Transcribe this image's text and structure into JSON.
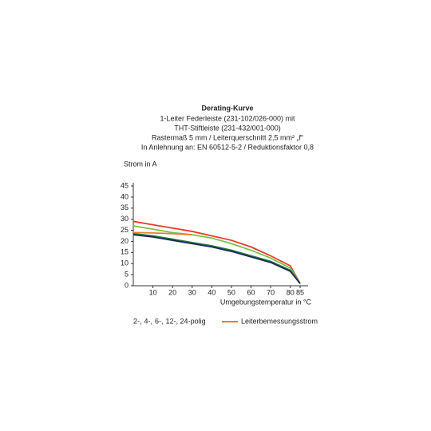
{
  "chart_data": {
    "type": "line",
    "title": "Derating-Kurve",
    "subtitle": [
      "1-Leiter Federleiste (231-102/026-000) mit",
      "THT-Stiftleiste (231-432/001-000)",
      "Rastermaß 5 mm / Leiterquerschnitt 2,5 mm² „f“",
      "In Anlehnung an: EN 60512-5-2 / Reduktionsfaktor 0,8"
    ],
    "y_label": "Strom in A",
    "x_label": "Umgebungstemperatur in °C",
    "x": [
      0,
      10,
      20,
      30,
      40,
      50,
      60,
      70,
      80,
      85
    ],
    "series": [
      {
        "name": "2-,",
        "color": "#e8392d",
        "values": [
          29,
          27.5,
          26,
          24.5,
          22.5,
          20.5,
          17.5,
          13.5,
          9,
          1
        ]
      },
      {
        "name": "4-,",
        "color": "#7cc04b",
        "values": [
          27,
          25.5,
          24,
          23,
          21.5,
          19,
          16,
          12.5,
          8,
          1
        ]
      },
      {
        "name": "6-,",
        "color": "#1f7a3e",
        "values": [
          23.5,
          22.5,
          21,
          19.5,
          18,
          16,
          13.5,
          11,
          7,
          1
        ]
      },
      {
        "name": "12-, 24-polig",
        "color": "#1c2a5a",
        "values": [
          23,
          22,
          20.5,
          19,
          17.5,
          15.5,
          13,
          10.5,
          6.5,
          1
        ]
      },
      {
        "name": "Leiterbemessungsstrom",
        "color": "#f07a28",
        "values": [
          24,
          23.8,
          23.5,
          23,
          null,
          null,
          null,
          null,
          null,
          null
        ]
      }
    ],
    "xlim": [
      0,
      85
    ],
    "xticks": [
      10,
      20,
      30,
      40,
      50,
      60,
      70,
      80,
      85
    ],
    "ylim": [
      0,
      45
    ],
    "yticks": [
      0,
      5,
      10,
      15,
      20,
      25,
      30,
      35,
      40,
      45
    ],
    "grid": false
  }
}
